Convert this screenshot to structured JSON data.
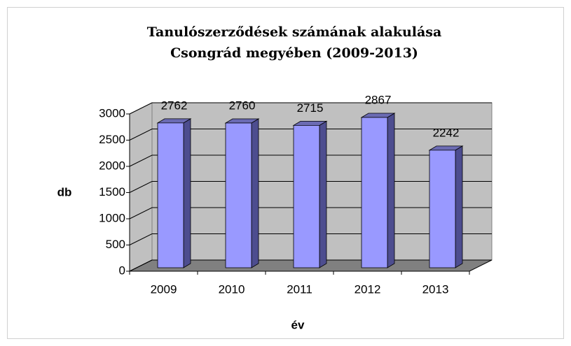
{
  "chart_data": {
    "type": "bar3d",
    "title": [
      "Tanulószerződések számának alakulása",
      "Csongrád megyében (2009-2013)"
    ],
    "ylabel": "db",
    "xlabel": "év",
    "categories": [
      "2009",
      "2010",
      "2011",
      "2012",
      "2013"
    ],
    "values": [
      2762,
      2760,
      2715,
      2867,
      2242
    ],
    "color": "#9999ff",
    "ylim": [
      0,
      3000
    ],
    "yticks": [
      0,
      500,
      1000,
      1500,
      2000,
      2500,
      3000
    ],
    "grid": true
  }
}
